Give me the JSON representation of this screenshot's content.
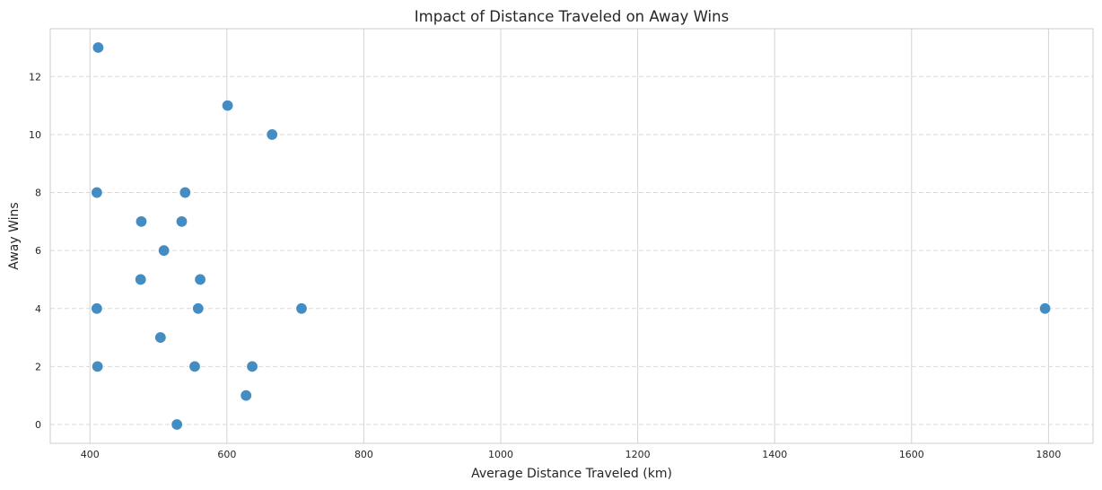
{
  "chart_data": {
    "type": "scatter",
    "title": "Impact of Distance Traveled on Away Wins",
    "xlabel": "Average Distance Traveled (km)",
    "ylabel": "Away Wins",
    "xlim": [
      342,
      1865
    ],
    "ylim": [
      -0.65,
      13.65
    ],
    "xticks": [
      400,
      600,
      800,
      1000,
      1200,
      1400,
      1600,
      1800
    ],
    "yticks": [
      0,
      2,
      4,
      6,
      8,
      10,
      12
    ],
    "grid": {
      "x": "solid",
      "y": "dashed"
    },
    "marker_color": "#3a87c0",
    "points": [
      {
        "x": 412,
        "y": 13
      },
      {
        "x": 601,
        "y": 11
      },
      {
        "x": 666,
        "y": 10
      },
      {
        "x": 410,
        "y": 8
      },
      {
        "x": 539,
        "y": 8
      },
      {
        "x": 475,
        "y": 7
      },
      {
        "x": 534,
        "y": 7
      },
      {
        "x": 508,
        "y": 6
      },
      {
        "x": 474,
        "y": 5
      },
      {
        "x": 561,
        "y": 5
      },
      {
        "x": 410,
        "y": 4
      },
      {
        "x": 558,
        "y": 4
      },
      {
        "x": 709,
        "y": 4
      },
      {
        "x": 1795,
        "y": 4
      },
      {
        "x": 503,
        "y": 3
      },
      {
        "x": 411,
        "y": 2
      },
      {
        "x": 553,
        "y": 2
      },
      {
        "x": 637,
        "y": 2
      },
      {
        "x": 628,
        "y": 1
      },
      {
        "x": 527,
        "y": 0
      }
    ]
  }
}
